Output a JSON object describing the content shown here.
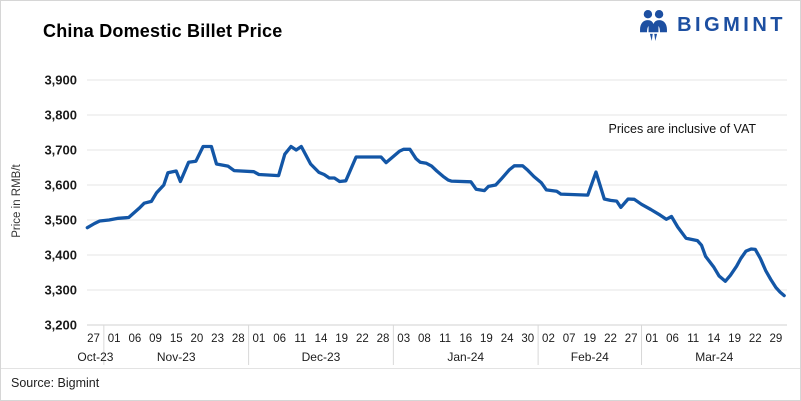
{
  "header": {
    "title": "China Domestic Billet Price",
    "logo_text": "BIGMINT"
  },
  "footer": {
    "source": "Source: Bigmint"
  },
  "colors": {
    "line": "#1356a6",
    "logo_blue": "#1d4fa1",
    "grid": "#e4e4e4",
    "axis": "#d2d2d2",
    "separator": "#d8d8d8",
    "text": "#1c1c1c"
  },
  "chart_data": {
    "type": "line",
    "title": "China Domestic Billet Price",
    "xlabel": "",
    "ylabel": "Price in RMB/t",
    "annotation": "Prices are inclusive of VAT",
    "grid": "horizontal",
    "legend_position": "none",
    "ylim": [
      3200,
      3900
    ],
    "y_ticks": [
      "3,900",
      "3,800",
      "3,700",
      "3,600",
      "3,500",
      "3,400",
      "3,300",
      "3,200"
    ],
    "y_tick_values": [
      3900,
      3800,
      3700,
      3600,
      3500,
      3400,
      3300,
      3200
    ],
    "x_tick_labels": [
      "27",
      "01",
      "06",
      "09",
      "15",
      "20",
      "23",
      "28",
      "01",
      "06",
      "11",
      "14",
      "19",
      "22",
      "28",
      "03",
      "08",
      "11",
      "16",
      "19",
      "24",
      "30",
      "02",
      "07",
      "19",
      "22",
      "27",
      "01",
      "06",
      "11",
      "14",
      "19",
      "22",
      "29"
    ],
    "x_months": [
      {
        "label": "Oct-23",
        "from": 0,
        "to": 0
      },
      {
        "label": "Nov-23",
        "from": 1,
        "to": 7
      },
      {
        "label": "Dec-23",
        "from": 8,
        "to": 14
      },
      {
        "label": "Jan-24",
        "from": 15,
        "to": 21
      },
      {
        "label": "Feb-24",
        "from": 22,
        "to": 26
      },
      {
        "label": "Mar-24",
        "from": 27,
        "to": 33
      }
    ],
    "tick_values_estimate": {
      "Oct-27": 3480,
      "Nov-01": 3500,
      "Nov-06": 3515,
      "Nov-09": 3570,
      "Nov-15": 3640,
      "Nov-20": 3690,
      "Nov-23": 3655,
      "Nov-28": 3640,
      "Dec-01": 3630,
      "Dec-06": 3630,
      "Dec-11": 3710,
      "Dec-14": 3630,
      "Dec-19": 3612,
      "Dec-22": 3680,
      "Dec-28": 3680,
      "Jan-03": 3700,
      "Jan-08": 3665,
      "Jan-11": 3628,
      "Jan-16": 3610,
      "Jan-19": 3590,
      "Jan-24": 3645,
      "Jan-30": 3645,
      "Feb-02": 3585,
      "Feb-07": 3572,
      "Feb-19": 3637,
      "Feb-22": 3555,
      "Feb-27": 3558,
      "Mar-01": 3530,
      "Mar-06": 3510,
      "Mar-11": 3442,
      "Mar-14": 3365,
      "Mar-19": 3390,
      "Mar-22": 3416,
      "Mar-29": 3295
    },
    "series": [
      {
        "name": "China Domestic Billet Price",
        "color": "#1356a6",
        "points": [
          [
            -0.3,
            3478
          ],
          [
            0.05,
            3490
          ],
          [
            0.3,
            3497
          ],
          [
            0.75,
            3500
          ],
          [
            1.2,
            3505
          ],
          [
            1.7,
            3507
          ],
          [
            1.85,
            3515
          ],
          [
            2.2,
            3533
          ],
          [
            2.45,
            3548
          ],
          [
            2.8,
            3553
          ],
          [
            3.05,
            3578
          ],
          [
            3.4,
            3600
          ],
          [
            3.6,
            3635
          ],
          [
            4.0,
            3640
          ],
          [
            4.2,
            3610
          ],
          [
            4.6,
            3665
          ],
          [
            4.95,
            3668
          ],
          [
            5.3,
            3710
          ],
          [
            5.7,
            3710
          ],
          [
            5.95,
            3660
          ],
          [
            6.5,
            3654
          ],
          [
            6.8,
            3641
          ],
          [
            7.75,
            3638
          ],
          [
            8.0,
            3630
          ],
          [
            8.95,
            3627
          ],
          [
            9.25,
            3688
          ],
          [
            9.55,
            3710
          ],
          [
            9.8,
            3700
          ],
          [
            10.05,
            3710
          ],
          [
            10.5,
            3660
          ],
          [
            10.9,
            3636
          ],
          [
            11.15,
            3630
          ],
          [
            11.4,
            3620
          ],
          [
            11.65,
            3620
          ],
          [
            11.9,
            3610
          ],
          [
            12.2,
            3612
          ],
          [
            12.7,
            3680
          ],
          [
            13.9,
            3680
          ],
          [
            14.15,
            3664
          ],
          [
            14.8,
            3697
          ],
          [
            15.0,
            3702
          ],
          [
            15.3,
            3702
          ],
          [
            15.6,
            3675
          ],
          [
            15.8,
            3665
          ],
          [
            16.1,
            3662
          ],
          [
            16.35,
            3654
          ],
          [
            16.6,
            3640
          ],
          [
            16.9,
            3625
          ],
          [
            17.15,
            3614
          ],
          [
            17.3,
            3611
          ],
          [
            18.25,
            3609
          ],
          [
            18.5,
            3588
          ],
          [
            18.9,
            3584
          ],
          [
            19.1,
            3596
          ],
          [
            19.45,
            3600
          ],
          [
            19.7,
            3616
          ],
          [
            20.1,
            3643
          ],
          [
            20.35,
            3655
          ],
          [
            20.75,
            3655
          ],
          [
            21.0,
            3642
          ],
          [
            21.3,
            3624
          ],
          [
            21.65,
            3607
          ],
          [
            21.9,
            3586
          ],
          [
            22.4,
            3582
          ],
          [
            22.6,
            3574
          ],
          [
            23.9,
            3571
          ],
          [
            24.3,
            3637
          ],
          [
            24.7,
            3560
          ],
          [
            25.0,
            3556
          ],
          [
            25.3,
            3554
          ],
          [
            25.5,
            3536
          ],
          [
            25.85,
            3560
          ],
          [
            26.15,
            3559
          ],
          [
            26.5,
            3545
          ],
          [
            26.95,
            3530
          ],
          [
            27.4,
            3514
          ],
          [
            27.7,
            3502
          ],
          [
            27.95,
            3510
          ],
          [
            28.25,
            3480
          ],
          [
            28.65,
            3448
          ],
          [
            29.2,
            3441
          ],
          [
            29.4,
            3428
          ],
          [
            29.6,
            3396
          ],
          [
            30.0,
            3365
          ],
          [
            30.25,
            3340
          ],
          [
            30.55,
            3325
          ],
          [
            30.8,
            3342
          ],
          [
            31.1,
            3368
          ],
          [
            31.3,
            3390
          ],
          [
            31.55,
            3411
          ],
          [
            31.8,
            3417
          ],
          [
            32.0,
            3416
          ],
          [
            32.25,
            3390
          ],
          [
            32.5,
            3356
          ],
          [
            32.75,
            3330
          ],
          [
            33.0,
            3307
          ],
          [
            33.2,
            3294
          ],
          [
            33.4,
            3284
          ]
        ]
      }
    ]
  }
}
